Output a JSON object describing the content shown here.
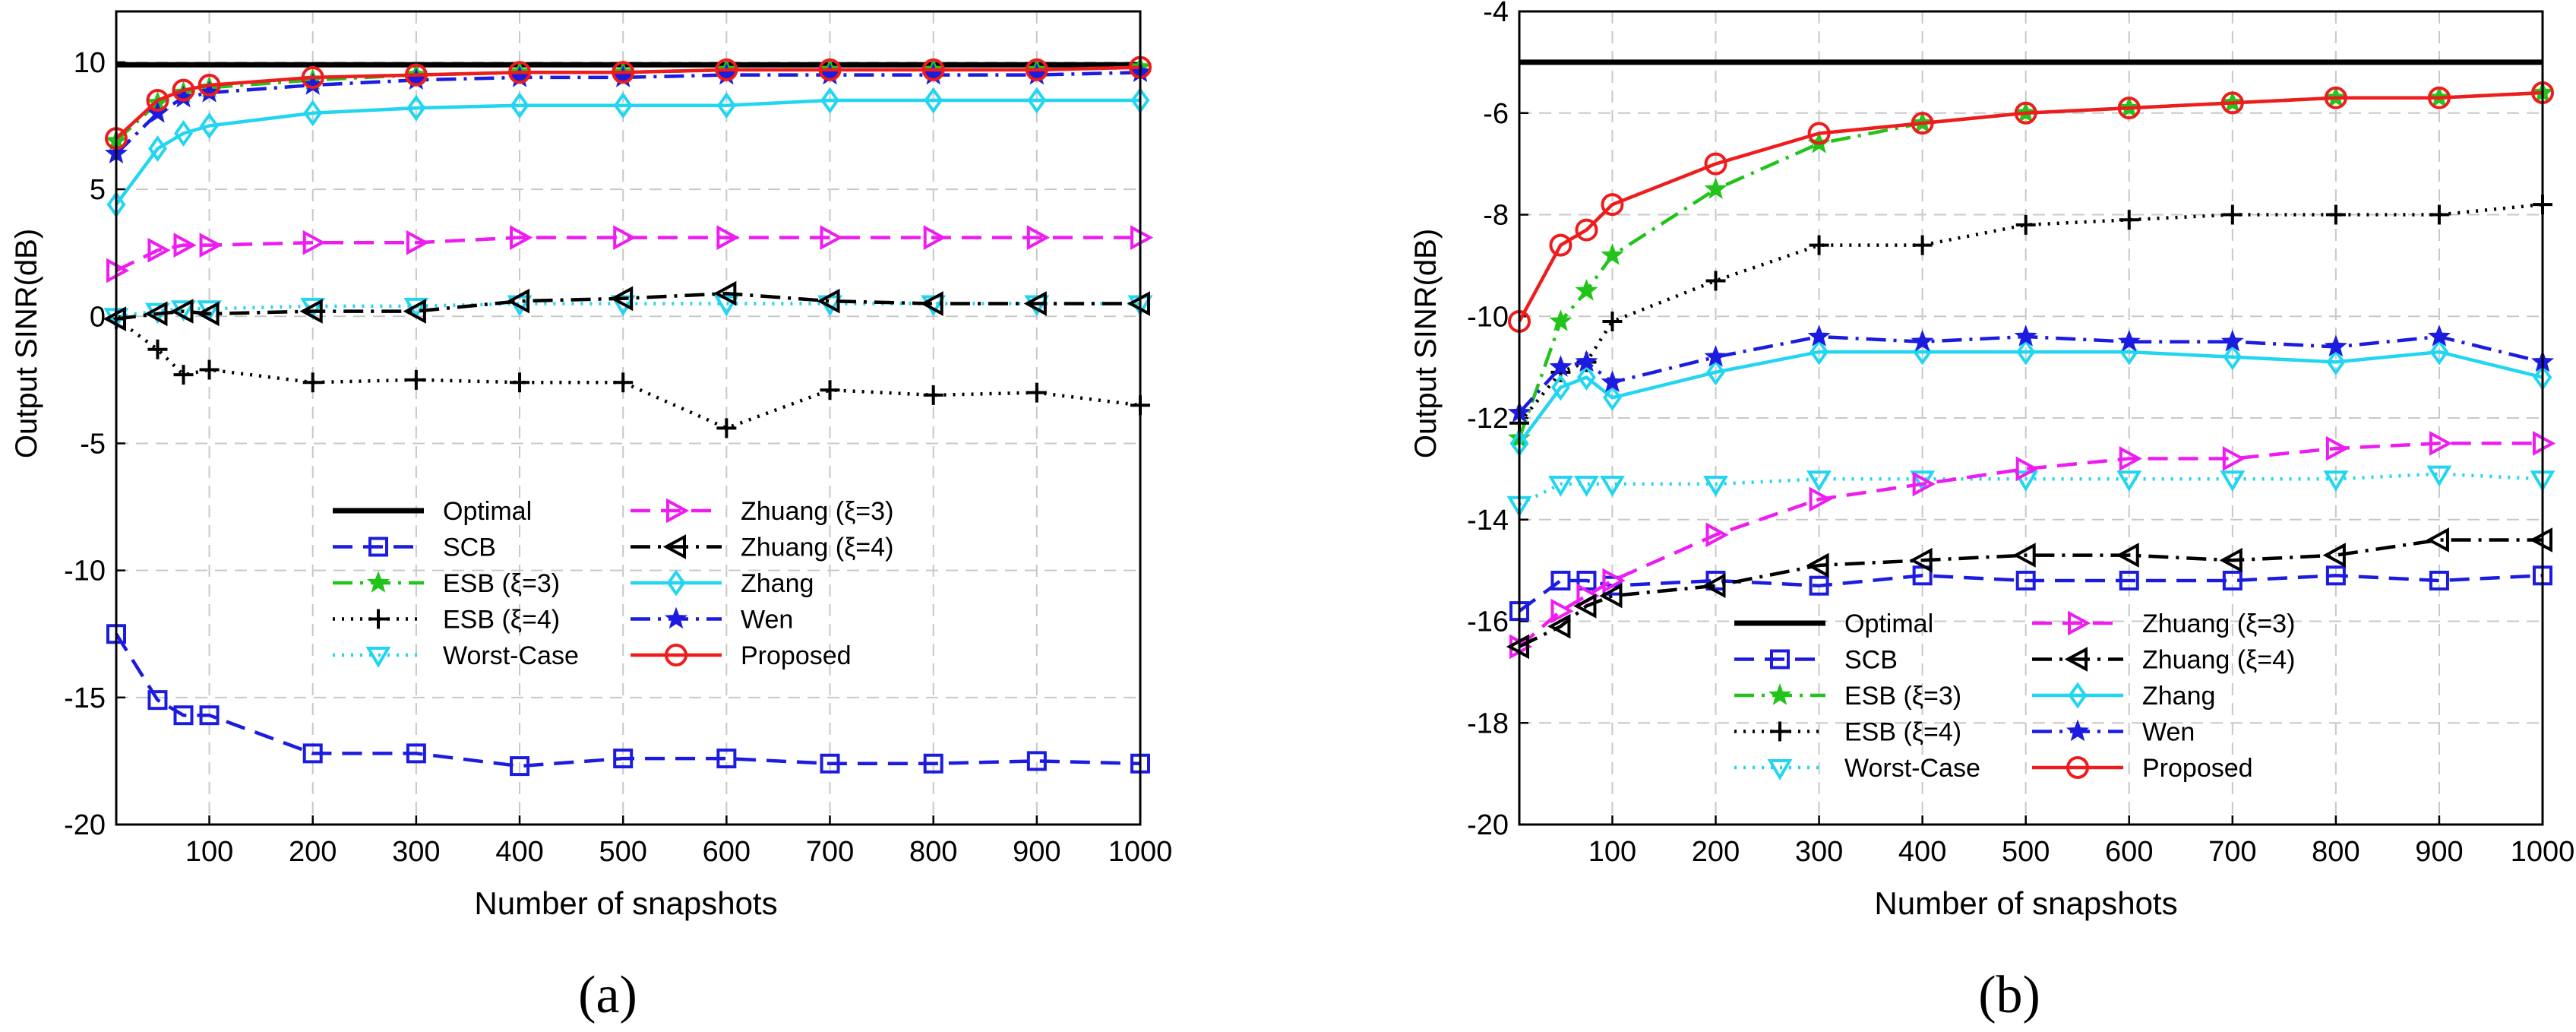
{
  "chart_data": [
    {
      "type": "line",
      "panel_label": "(a)",
      "xlabel": "Number of snapshots",
      "ylabel": "Output SINR(dB)",
      "xlim": [
        10,
        1000
      ],
      "ylim": [
        -20,
        12
      ],
      "xticks": [
        100,
        200,
        300,
        400,
        500,
        600,
        700,
        800,
        900,
        1000
      ],
      "yticks": [
        -20,
        -15,
        -10,
        -5,
        0,
        5,
        10
      ],
      "grid": true,
      "legend_position": "lower-center",
      "x": [
        10,
        50,
        75,
        100,
        200,
        300,
        400,
        500,
        600,
        700,
        800,
        900,
        1000
      ],
      "series": [
        {
          "name": "Optimal",
          "color": "#000000",
          "dash": "solid",
          "marker": "none",
          "values": [
            9.9,
            9.9,
            9.9,
            9.9,
            9.9,
            9.9,
            9.9,
            9.9,
            9.9,
            9.9,
            9.9,
            9.9,
            9.9
          ]
        },
        {
          "name": "SCB",
          "color": "#1c1ce0",
          "dash": "dash",
          "marker": "square",
          "values": [
            -12.5,
            -15.1,
            -15.7,
            -15.7,
            -17.2,
            -17.2,
            -17.7,
            -17.4,
            -17.4,
            -17.6,
            -17.6,
            -17.5,
            -17.6
          ]
        },
        {
          "name": "ESB (ξ=3)",
          "color": "#22c41c",
          "dash": "dashdot",
          "marker": "star",
          "values": [
            6.9,
            8.4,
            8.8,
            9.0,
            9.3,
            9.5,
            9.6,
            9.6,
            9.7,
            9.7,
            9.7,
            9.7,
            9.8
          ]
        },
        {
          "name": "ESB (ξ=4)",
          "color": "#000000",
          "dash": "dot",
          "marker": "plus",
          "values": [
            -0.1,
            -1.3,
            -2.3,
            -2.1,
            -2.6,
            -2.5,
            -2.6,
            -2.6,
            -4.4,
            -2.9,
            -3.1,
            -3.0,
            -3.5
          ]
        },
        {
          "name": "Worst-Case",
          "color": "#22d5f0",
          "dash": "dot",
          "marker": "tri-down",
          "values": [
            0.0,
            0.2,
            0.3,
            0.3,
            0.4,
            0.4,
            0.5,
            0.5,
            0.5,
            0.5,
            0.5,
            0.5,
            0.5
          ]
        },
        {
          "name": "Zhuang (ξ=3)",
          "color": "#ee1cf0",
          "dash": "dash",
          "marker": "tri-right",
          "values": [
            1.8,
            2.6,
            2.8,
            2.8,
            2.9,
            2.9,
            3.1,
            3.1,
            3.1,
            3.1,
            3.1,
            3.1,
            3.1
          ]
        },
        {
          "name": "Zhuang (ξ=4)",
          "color": "#000000",
          "dash": "dashdot",
          "marker": "tri-left",
          "values": [
            -0.1,
            0.1,
            0.2,
            0.1,
            0.2,
            0.2,
            0.6,
            0.7,
            0.9,
            0.6,
            0.5,
            0.5,
            0.5
          ]
        },
        {
          "name": "Zhang",
          "color": "#22d5f0",
          "dash": "solid",
          "marker": "diamond",
          "values": [
            4.4,
            6.6,
            7.2,
            7.5,
            8.0,
            8.2,
            8.3,
            8.3,
            8.3,
            8.5,
            8.5,
            8.5,
            8.5
          ]
        },
        {
          "name": "Wen",
          "color": "#1c1ce0",
          "dash": "dashdot",
          "marker": "star",
          "values": [
            6.4,
            8.0,
            8.6,
            8.8,
            9.1,
            9.3,
            9.4,
            9.4,
            9.5,
            9.5,
            9.5,
            9.5,
            9.6
          ]
        },
        {
          "name": "Proposed",
          "color": "#ee1c1c",
          "dash": "solid",
          "marker": "circle",
          "values": [
            7.0,
            8.5,
            8.9,
            9.1,
            9.4,
            9.5,
            9.6,
            9.6,
            9.7,
            9.7,
            9.7,
            9.7,
            9.8
          ]
        }
      ]
    },
    {
      "type": "line",
      "panel_label": "(b)",
      "xlabel": "Number of snapshots",
      "ylabel": "Output SINR(dB)",
      "xlim": [
        10,
        1000
      ],
      "ylim": [
        -20,
        -4
      ],
      "xticks": [
        100,
        200,
        300,
        400,
        500,
        600,
        700,
        800,
        900,
        1000
      ],
      "yticks": [
        -20,
        -18,
        -16,
        -14,
        -12,
        -10,
        -8,
        -6,
        -4
      ],
      "grid": true,
      "legend_position": "lower-center",
      "x": [
        10,
        50,
        75,
        100,
        200,
        300,
        400,
        500,
        600,
        700,
        800,
        900,
        1000
      ],
      "series": [
        {
          "name": "Optimal",
          "color": "#000000",
          "dash": "solid",
          "marker": "none",
          "values": [
            -5.0,
            -5.0,
            -5.0,
            -5.0,
            -5.0,
            -5.0,
            -5.0,
            -5.0,
            -5.0,
            -5.0,
            -5.0,
            -5.0,
            -5.0
          ]
        },
        {
          "name": "SCB",
          "color": "#1c1ce0",
          "dash": "dash",
          "marker": "square",
          "values": [
            -15.8,
            -15.2,
            -15.2,
            -15.3,
            -15.2,
            -15.3,
            -15.1,
            -15.2,
            -15.2,
            -15.2,
            -15.1,
            -15.2,
            -15.1
          ]
        },
        {
          "name": "ESB (ξ=3)",
          "color": "#22c41c",
          "dash": "dashdot",
          "marker": "star",
          "values": [
            -12.4,
            -10.1,
            -9.5,
            -8.8,
            -7.5,
            -6.6,
            -6.2,
            -6.0,
            -5.9,
            -5.8,
            -5.7,
            -5.7,
            -5.6
          ]
        },
        {
          "name": "ESB (ξ=4)",
          "color": "#000000",
          "dash": "dot",
          "marker": "plus",
          "values": [
            -12.1,
            -11.1,
            -10.9,
            -10.1,
            -9.3,
            -8.6,
            -8.6,
            -8.2,
            -8.1,
            -8.0,
            -8.0,
            -8.0,
            -7.8
          ]
        },
        {
          "name": "Worst-Case",
          "color": "#22d5f0",
          "dash": "dot",
          "marker": "tri-down",
          "values": [
            -13.7,
            -13.3,
            -13.3,
            -13.3,
            -13.3,
            -13.2,
            -13.2,
            -13.2,
            -13.2,
            -13.2,
            -13.2,
            -13.1,
            -13.2
          ]
        },
        {
          "name": "Zhuang (ξ=3)",
          "color": "#ee1cf0",
          "dash": "dash",
          "marker": "tri-right",
          "values": [
            -16.5,
            -15.8,
            -15.5,
            -15.2,
            -14.3,
            -13.6,
            -13.3,
            -13.0,
            -12.8,
            -12.8,
            -12.6,
            -12.5,
            -12.5
          ]
        },
        {
          "name": "Zhuang (ξ=4)",
          "color": "#000000",
          "dash": "dashdot",
          "marker": "tri-left",
          "values": [
            -16.5,
            -16.1,
            -15.7,
            -15.5,
            -15.3,
            -14.9,
            -14.8,
            -14.7,
            -14.7,
            -14.8,
            -14.7,
            -14.4,
            -14.4
          ]
        },
        {
          "name": "Zhang",
          "color": "#22d5f0",
          "dash": "solid",
          "marker": "diamond",
          "values": [
            -12.5,
            -11.4,
            -11.2,
            -11.6,
            -11.1,
            -10.7,
            -10.7,
            -10.7,
            -10.7,
            -10.8,
            -10.9,
            -10.7,
            -11.2
          ]
        },
        {
          "name": "Wen",
          "color": "#1c1ce0",
          "dash": "dashdot",
          "marker": "star",
          "values": [
            -11.9,
            -11.0,
            -10.9,
            -11.3,
            -10.8,
            -10.4,
            -10.5,
            -10.4,
            -10.5,
            -10.5,
            -10.6,
            -10.4,
            -10.9
          ]
        },
        {
          "name": "Proposed",
          "color": "#ee1c1c",
          "dash": "solid",
          "marker": "circle",
          "values": [
            -10.1,
            -8.6,
            -8.3,
            -7.8,
            -7.0,
            -6.4,
            -6.2,
            -6.0,
            -5.9,
            -5.8,
            -5.7,
            -5.7,
            -5.6
          ]
        }
      ]
    }
  ]
}
